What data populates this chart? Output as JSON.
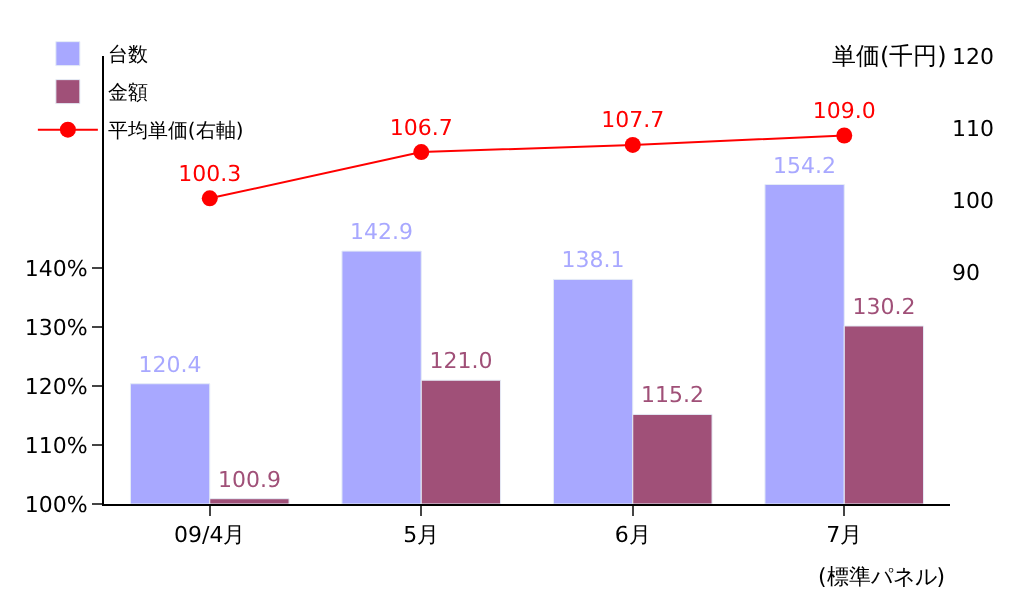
{
  "chart_data": {
    "type": "bar",
    "categories": [
      "09/4月",
      "5月",
      "6月",
      "7月"
    ],
    "series": [
      {
        "name": "台数",
        "color": "#a8a8ff",
        "values": [
          120.4,
          142.9,
          138.1,
          154.2
        ]
      },
      {
        "name": "金額",
        "color": "#a05078",
        "values": [
          100.9,
          121.0,
          115.2,
          130.2
        ],
        "value_labels": [
          "100.9",
          "121.0",
          "115.2",
          "130.2"
        ]
      },
      {
        "name": "平均単価(右軸)",
        "type": "line",
        "axis": "y2",
        "color": "#ff0000",
        "marker": "circle",
        "values": [
          100.3,
          106.7,
          107.7,
          109.0
        ],
        "value_labels": [
          "100.3",
          "106.7",
          "107.7",
          "109.0"
        ]
      }
    ],
    "ylim": [
      100,
      176
    ],
    "yticks": [
      {
        "value": 100,
        "label": "100%"
      },
      {
        "value": 110,
        "label": "110%"
      },
      {
        "value": 120,
        "label": "120%"
      },
      {
        "value": 130,
        "label": "130%"
      },
      {
        "value": 140,
        "label": "140%"
      }
    ],
    "y2lim": [
      58,
      120
    ],
    "y2ticks": [
      90,
      100,
      110,
      120
    ],
    "y2label": "単価(千円)",
    "annotations": [
      "(標準パネル)"
    ],
    "data_labels": true,
    "legend": "top left"
  }
}
